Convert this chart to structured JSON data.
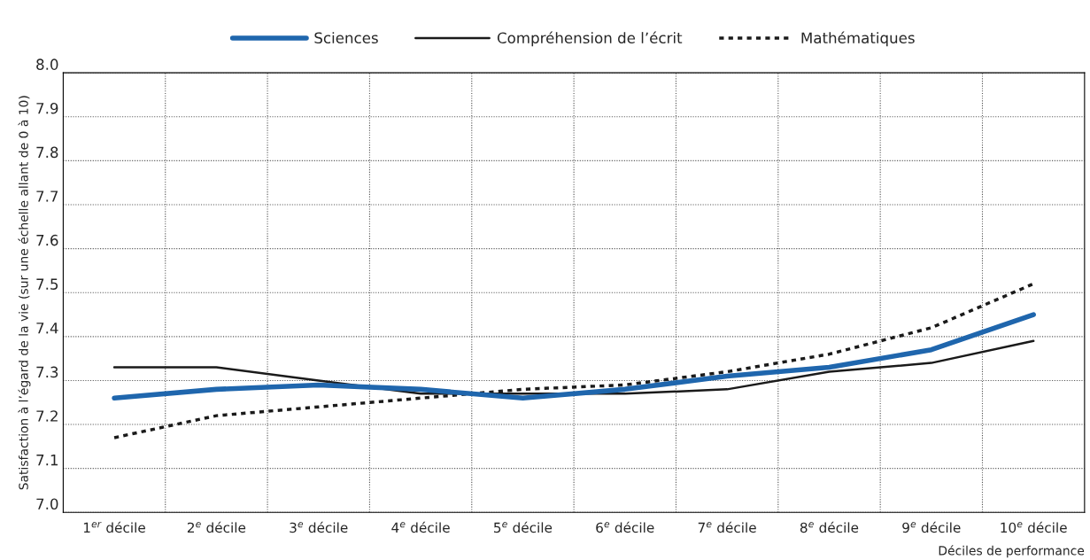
{
  "chart_data": {
    "type": "line",
    "xlabel": "Déciles de performance",
    "ylabel": "Satisfaction à l’égard de la vie (sur une échelle allant de 0 à 10)",
    "categories": [
      "1$^{er}$ décile",
      "2$^{e}$ décile",
      "3$^{e}$ décile",
      "4$^{e}$ décile",
      "5$^{e}$ décile",
      "6$^{e}$ décile",
      "7$^{e}$ décile",
      "8$^{e}$ décile",
      "9$^{e}$ décile",
      "10$^{e}$ décile"
    ],
    "series": [
      {
        "name": "Sciences",
        "color": "#1f66ad",
        "line_style": "solid",
        "values": [
          7.26,
          7.28,
          7.29,
          7.28,
          7.26,
          7.28,
          7.31,
          7.33,
          7.37,
          7.45
        ]
      },
      {
        "name": "Compréhension de l’écrit",
        "color": "#1a1a1a",
        "line_style": "solid",
        "values": [
          7.33,
          7.33,
          7.3,
          7.27,
          7.27,
          7.27,
          7.28,
          7.32,
          7.34,
          7.39
        ]
      },
      {
        "name": "Mathématiques",
        "color": "#1a1a1a",
        "line_style": "dotted",
        "values": [
          7.17,
          7.22,
          7.24,
          7.26,
          7.28,
          7.29,
          7.32,
          7.36,
          7.42,
          7.52
        ]
      }
    ],
    "ylim": [
      7.0,
      8.0
    ],
    "yticks": [
      {
        "value": 7.0,
        "label": "7.0"
      },
      {
        "value": 7.1,
        "label": "7.1"
      },
      {
        "value": 7.2,
        "label": "7.2"
      },
      {
        "value": 7.3,
        "label": "7.3"
      },
      {
        "value": 7.4,
        "label": "7.4"
      },
      {
        "value": 7.5,
        "label": "7.5"
      },
      {
        "value": 7.6,
        "label": "7.6"
      },
      {
        "value": 7.7,
        "label": "7.7"
      },
      {
        "value": 7.8,
        "label": "7.8"
      },
      {
        "value": 7.9,
        "label": "7.9"
      },
      {
        "value": 8.0,
        "label": "8.0"
      }
    ],
    "grid": true,
    "legend": "top",
    "marker": "none"
  }
}
